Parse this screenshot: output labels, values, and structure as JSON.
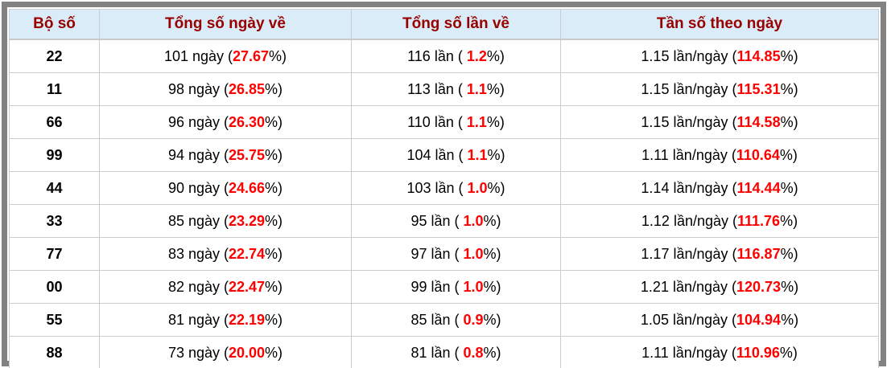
{
  "table": {
    "colors": {
      "outer_border": "#828282",
      "header_bg": "#d9ecf7",
      "header_text": "#990000",
      "cell_border": "#cccccc",
      "accent_red": "#ff0000",
      "body_text": "#000000"
    },
    "header": {
      "columns": [
        "Bộ số",
        "Tổng số ngày về",
        "Tổng số lần về",
        "Tần số theo ngày"
      ]
    },
    "rows": [
      {
        "pair": "22",
        "days_prefix": "101 ngày (",
        "days_pct": "27.67",
        "days_suffix": "%)",
        "times_prefix": "116 lần ( ",
        "times_pct": "1.2",
        "times_suffix": "%)",
        "freq_prefix": "1.15 lần/ngày (",
        "freq_pct": "114.85",
        "freq_suffix": "%)"
      },
      {
        "pair": "11",
        "days_prefix": "98 ngày (",
        "days_pct": "26.85",
        "days_suffix": "%)",
        "times_prefix": "113 lần ( ",
        "times_pct": "1.1",
        "times_suffix": "%)",
        "freq_prefix": "1.15 lần/ngày (",
        "freq_pct": "115.31",
        "freq_suffix": "%)"
      },
      {
        "pair": "66",
        "days_prefix": "96 ngày (",
        "days_pct": "26.30",
        "days_suffix": "%)",
        "times_prefix": "110 lần ( ",
        "times_pct": "1.1",
        "times_suffix": "%)",
        "freq_prefix": "1.15 lần/ngày (",
        "freq_pct": "114.58",
        "freq_suffix": "%)"
      },
      {
        "pair": "99",
        "days_prefix": "94 ngày (",
        "days_pct": "25.75",
        "days_suffix": "%)",
        "times_prefix": "104 lần ( ",
        "times_pct": "1.1",
        "times_suffix": "%)",
        "freq_prefix": "1.11 lần/ngày (",
        "freq_pct": "110.64",
        "freq_suffix": "%)"
      },
      {
        "pair": "44",
        "days_prefix": "90 ngày (",
        "days_pct": "24.66",
        "days_suffix": "%)",
        "times_prefix": "103 lần ( ",
        "times_pct": "1.0",
        "times_suffix": "%)",
        "freq_prefix": "1.14 lần/ngày (",
        "freq_pct": "114.44",
        "freq_suffix": "%)"
      },
      {
        "pair": "33",
        "days_prefix": "85 ngày (",
        "days_pct": "23.29",
        "days_suffix": "%)",
        "times_prefix": "95 lần ( ",
        "times_pct": "1.0",
        "times_suffix": "%)",
        "freq_prefix": "1.12 lần/ngày (",
        "freq_pct": "111.76",
        "freq_suffix": "%)"
      },
      {
        "pair": "77",
        "days_prefix": "83 ngày (",
        "days_pct": "22.74",
        "days_suffix": "%)",
        "times_prefix": "97 lần ( ",
        "times_pct": "1.0",
        "times_suffix": "%)",
        "freq_prefix": "1.17 lần/ngày (",
        "freq_pct": "116.87",
        "freq_suffix": "%)"
      },
      {
        "pair": "00",
        "days_prefix": "82 ngày (",
        "days_pct": "22.47",
        "days_suffix": "%)",
        "times_prefix": "99 lần ( ",
        "times_pct": "1.0",
        "times_suffix": "%)",
        "freq_prefix": "1.21 lần/ngày (",
        "freq_pct": "120.73",
        "freq_suffix": "%)"
      },
      {
        "pair": "55",
        "days_prefix": "81 ngày (",
        "days_pct": "22.19",
        "days_suffix": "%)",
        "times_prefix": "85 lần ( ",
        "times_pct": "0.9",
        "times_suffix": "%)",
        "freq_prefix": "1.05 lần/ngày (",
        "freq_pct": "104.94",
        "freq_suffix": "%)"
      },
      {
        "pair": "88",
        "days_prefix": "73 ngày (",
        "days_pct": "20.00",
        "days_suffix": "%)",
        "times_prefix": "81 lần ( ",
        "times_pct": "0.8",
        "times_suffix": "%)",
        "freq_prefix": "1.11 lần/ngày (",
        "freq_pct": "110.96",
        "freq_suffix": "%)"
      }
    ]
  }
}
